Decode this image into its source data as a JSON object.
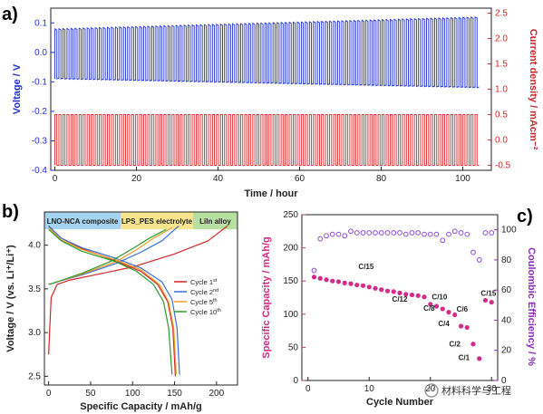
{
  "panels": {
    "a": "a)",
    "b": "b)",
    "c": "c)"
  },
  "watermark": "材料科学与工程",
  "chart_data": [
    {
      "id": "a",
      "type": "line",
      "xlabel": "Time / hour",
      "ylabel": "Voltage / V",
      "ylabel_right": "Current density / mAcm⁻²",
      "xlim": [
        -1,
        107
      ],
      "ylim": [
        -0.4,
        0.15
      ],
      "ylim_right": [
        -0.6,
        2.6
      ],
      "xticks": [
        0,
        20,
        40,
        60,
        80,
        100
      ],
      "yticks": [
        -0.4,
        -0.3,
        -0.2,
        -0.1,
        0.0,
        0.1
      ],
      "yticks_right": [
        -0.5,
        0.0,
        0.5,
        1.0,
        1.5,
        2.0,
        2.5
      ],
      "cycles": 105,
      "series": [
        {
          "axis": "left",
          "color": "#1f2fd0",
          "t_start": 0,
          "t_end": 104,
          "upper_start": 0.08,
          "upper_end": 0.12,
          "lower_start": -0.09,
          "lower_end": -0.12
        },
        {
          "axis": "right",
          "color": "#e0262a",
          "t_start": 0,
          "t_end": 104,
          "upper": 0.5,
          "lower": -0.5
        }
      ],
      "colors": {
        "left_axis": "#1f2fd0",
        "right_axis": "#d0262a"
      }
    },
    {
      "id": "b",
      "type": "line",
      "xlabel": "Specific Capacity / mAh/g",
      "ylabel": "Voltage / V (vs. Li⁺/Li⁺)",
      "xlim": [
        -5,
        225
      ],
      "ylim": [
        2.4,
        4.38
      ],
      "xticks": [
        0,
        50,
        100,
        150,
        200
      ],
      "yticks": [
        2.5,
        3.0,
        3.5,
        4.0
      ],
      "legend_position": "right",
      "header": [
        {
          "label": "LNO-NCA composite",
          "color": "#a6d3ef"
        },
        {
          "label": "LPS_PES electrolyte",
          "color": "#f6e58d"
        },
        {
          "label": "LiIn alloy",
          "color": "#b6e0a0"
        }
      ],
      "series": [
        {
          "name": "Cycle 1",
          "sup": "st",
          "color": "#d42525",
          "charge": [
            [
              0,
              2.75
            ],
            [
              3,
              3.4
            ],
            [
              10,
              3.55
            ],
            [
              25,
              3.6
            ],
            [
              50,
              3.65
            ],
            [
              100,
              3.75
            ],
            [
              150,
              3.9
            ],
            [
              190,
              4.05
            ],
            [
              213,
              4.22
            ]
          ],
          "discharge": [
            [
              0,
              4.22
            ],
            [
              15,
              4.08
            ],
            [
              40,
              3.96
            ],
            [
              80,
              3.82
            ],
            [
              110,
              3.7
            ],
            [
              130,
              3.55
            ],
            [
              142,
              3.35
            ],
            [
              148,
              3.05
            ],
            [
              151,
              2.5
            ]
          ]
        },
        {
          "name": "Cycle 2",
          "sup": "nd",
          "color": "#3a6fd4",
          "charge": [
            [
              0,
              3.55
            ],
            [
              10,
              3.58
            ],
            [
              40,
              3.66
            ],
            [
              80,
              3.79
            ],
            [
              110,
              3.92
            ],
            [
              135,
              4.05
            ],
            [
              155,
              4.22
            ]
          ],
          "discharge": [
            [
              0,
              4.22
            ],
            [
              15,
              4.08
            ],
            [
              40,
              3.97
            ],
            [
              80,
              3.85
            ],
            [
              110,
              3.74
            ],
            [
              135,
              3.58
            ],
            [
              147,
              3.38
            ],
            [
              153,
              3.05
            ],
            [
              156,
              2.52
            ]
          ]
        },
        {
          "name": "Cycle 5",
          "sup": "th",
          "color": "#ee9a22",
          "charge": [
            [
              0,
              3.55
            ],
            [
              10,
              3.58
            ],
            [
              40,
              3.67
            ],
            [
              80,
              3.81
            ],
            [
              105,
              3.95
            ],
            [
              125,
              4.08
            ],
            [
              147,
              4.2
            ]
          ],
          "discharge": [
            [
              0,
              4.2
            ],
            [
              15,
              4.06
            ],
            [
              40,
              3.95
            ],
            [
              80,
              3.83
            ],
            [
              110,
              3.72
            ],
            [
              132,
              3.55
            ],
            [
              143,
              3.35
            ],
            [
              149,
              3.05
            ],
            [
              152,
              2.52
            ]
          ]
        },
        {
          "name": "Cycle 10",
          "sup": "th",
          "color": "#2d9a2d",
          "charge": [
            [
              0,
              3.55
            ],
            [
              10,
              3.58
            ],
            [
              40,
              3.68
            ],
            [
              75,
              3.82
            ],
            [
              100,
              3.96
            ],
            [
              120,
              4.08
            ],
            [
              140,
              4.18
            ]
          ],
          "discharge": [
            [
              0,
              4.18
            ],
            [
              15,
              4.05
            ],
            [
              40,
              3.93
            ],
            [
              80,
              3.81
            ],
            [
              105,
              3.7
            ],
            [
              125,
              3.55
            ],
            [
              137,
              3.35
            ],
            [
              143,
              3.05
            ],
            [
              147,
              2.52
            ]
          ]
        }
      ]
    },
    {
      "id": "c",
      "type": "scatter",
      "xlabel": "Cycle Number",
      "ylabel": "Specific Capacity / mAh/g",
      "ylabel_right": "Coulombic Efficiency / %",
      "xlim": [
        -1,
        31
      ],
      "ylim": [
        0,
        250
      ],
      "ylim_right": [
        0,
        110
      ],
      "xticks": [
        0,
        10,
        20,
        30
      ],
      "yticks": [
        0,
        50,
        100,
        150,
        200,
        250
      ],
      "yticks_right": [
        0,
        20,
        40,
        60,
        80,
        100
      ],
      "colors": {
        "left_axis": "#d02a82",
        "right_axis": "#8a2ab8",
        "capacity": "#d42a8c",
        "efficiency": "#8a4ad8"
      },
      "rate_labels": [
        {
          "text": "C/15",
          "x": 9.5,
          "y": 168
        },
        {
          "text": "C/12",
          "x": 15.0,
          "y": 119
        },
        {
          "text": "C/10",
          "x": 21.5,
          "y": 122
        },
        {
          "text": "C/8",
          "x": 19.8,
          "y": 105
        },
        {
          "text": "C/6",
          "x": 25.2,
          "y": 104
        },
        {
          "text": "C/4",
          "x": 22.2,
          "y": 82
        },
        {
          "text": "C/2",
          "x": 24.0,
          "y": 51
        },
        {
          "text": "C/1",
          "x": 25.5,
          "y": 31
        },
        {
          "text": "C/15",
          "x": 29.5,
          "y": 128
        }
      ],
      "series": [
        {
          "name": "Specific Capacity",
          "axis": "left",
          "x": [
            1,
            2,
            3,
            4,
            5,
            6,
            7,
            8,
            9,
            10,
            11,
            12,
            13,
            14,
            15,
            16,
            17,
            18,
            19,
            20,
            21,
            22,
            23,
            24,
            25,
            26,
            27,
            28,
            29,
            30
          ],
          "y": [
            156,
            154,
            152,
            150,
            149,
            147,
            146,
            144,
            143,
            141,
            139,
            137,
            135,
            134,
            132,
            130,
            129,
            128,
            126,
            115,
            112,
            108,
            103,
            99,
            82,
            80,
            55,
            33,
            121,
            118
          ]
        },
        {
          "name": "Coulombic Efficiency",
          "axis": "right",
          "x": [
            1,
            2,
            3,
            4,
            5,
            6,
            7,
            8,
            9,
            10,
            11,
            12,
            13,
            14,
            15,
            16,
            17,
            18,
            19,
            20,
            21,
            22,
            23,
            24,
            25,
            26,
            27,
            28,
            29,
            30
          ],
          "y": [
            73,
            94,
            96,
            97,
            97,
            96,
            99,
            98,
            98,
            98,
            98,
            98,
            98,
            98,
            98,
            97,
            98,
            98,
            97,
            97,
            97,
            93,
            97,
            99,
            98,
            97,
            85,
            80,
            98,
            98
          ]
        }
      ]
    }
  ]
}
